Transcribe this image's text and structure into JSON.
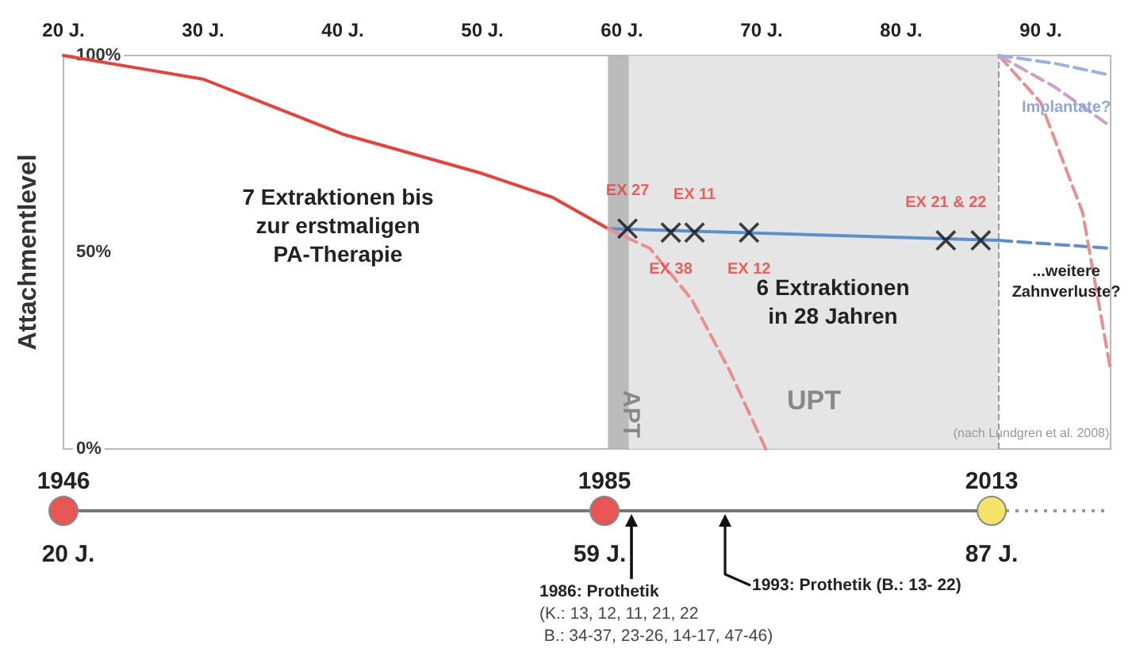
{
  "chart_data": [
    {
      "type": "line",
      "ylabel": "Attachmentlevel",
      "xlim": [
        20,
        95
      ],
      "ylim": [
        0,
        100
      ],
      "xticks": [
        {
          "value": 20,
          "label": "20 J."
        },
        {
          "value": 30,
          "label": "30 J."
        },
        {
          "value": 40,
          "label": "40 J."
        },
        {
          "value": 50,
          "label": "50 J."
        },
        {
          "value": 60,
          "label": "60 J."
        },
        {
          "value": 70,
          "label": "70 J."
        },
        {
          "value": 80,
          "label": "80 J."
        },
        {
          "value": 90,
          "label": "90 J."
        }
      ],
      "yticks": [
        {
          "value": 0,
          "label": "0%"
        },
        {
          "value": 50,
          "label": "50%"
        },
        {
          "value": 100,
          "label": "100%"
        }
      ],
      "grid": false,
      "marker": "none",
      "series": [
        {
          "color": "#e8403a",
          "line_style": "solid",
          "x": [
            20,
            25,
            30,
            35,
            40,
            45,
            50,
            55,
            59
          ],
          "values": [
            100,
            97,
            94,
            87,
            80,
            75,
            70,
            64,
            56
          ]
        },
        {
          "color": "#5b8fd0",
          "line_style": "solid",
          "x": [
            59,
            87
          ],
          "values": [
            56,
            53
          ]
        },
        {
          "color": "#5b8fd0",
          "line_style": "dashed",
          "x": [
            87,
            95
          ],
          "values": [
            53,
            51
          ]
        },
        {
          "color": "#e89090",
          "line_style": "dashed",
          "x": [
            59,
            62,
            65,
            67.7,
            70.3
          ],
          "values": [
            56,
            51,
            38,
            20,
            0
          ]
        },
        {
          "color": "#e89090",
          "line_style": "dashed",
          "x": [
            87,
            90,
            93,
            95
          ],
          "values": [
            100,
            88,
            60,
            20
          ]
        },
        {
          "color": "#c8a0c8",
          "line_style": "dashed",
          "x": [
            87,
            91,
            95
          ],
          "values": [
            100,
            92,
            82
          ]
        },
        {
          "color": "#9ab0e0",
          "line_style": "dashed",
          "x": [
            87,
            91,
            95
          ],
          "values": [
            100,
            98,
            95
          ]
        },
        {
          "type": "scatter",
          "marker": "cross",
          "color": "#111111",
          "x": [
            60.4,
            63.5,
            65.2,
            69.1,
            83.2,
            85.7
          ],
          "values": [
            56,
            55,
            55,
            55,
            53,
            53
          ],
          "value_labels": [
            "EX 27",
            "EX 38",
            "EX 11",
            "EX 12",
            "EX 21 & 22",
            null
          ]
        }
      ],
      "bands": [
        {
          "axis": "x",
          "from": 59,
          "to": 60.5,
          "label": "APT",
          "color": "#b4b4b4"
        },
        {
          "axis": "x",
          "from": 60.5,
          "to": 87,
          "label": "UPT",
          "color": "#e2e2e2"
        }
      ],
      "ref_lines": [
        {
          "axis": "x",
          "value": 87,
          "color": "#999999",
          "line_style": "dashed"
        }
      ],
      "annotations": [
        "7 Extraktionen bis\nzur erstmaligen\nPA-Therapie",
        "6 Extraktionen\nin 28 Jahren",
        "...weitere\nZahnverluste?",
        "Implantate?",
        "(nach Lundgren et al. 2008)"
      ]
    },
    {
      "type": "other",
      "annotations": [
        "1946",
        "1985",
        "2013",
        "20 J.",
        "59 J.",
        "87 J.",
        "1986: Prothetik\n(K.: 13, 12, 11, 21, 22\n B.: 34-37, 23-26, 14-17, 47-46)",
        "1993: Prothetik (B.: 13- 22)"
      ]
    }
  ]
}
